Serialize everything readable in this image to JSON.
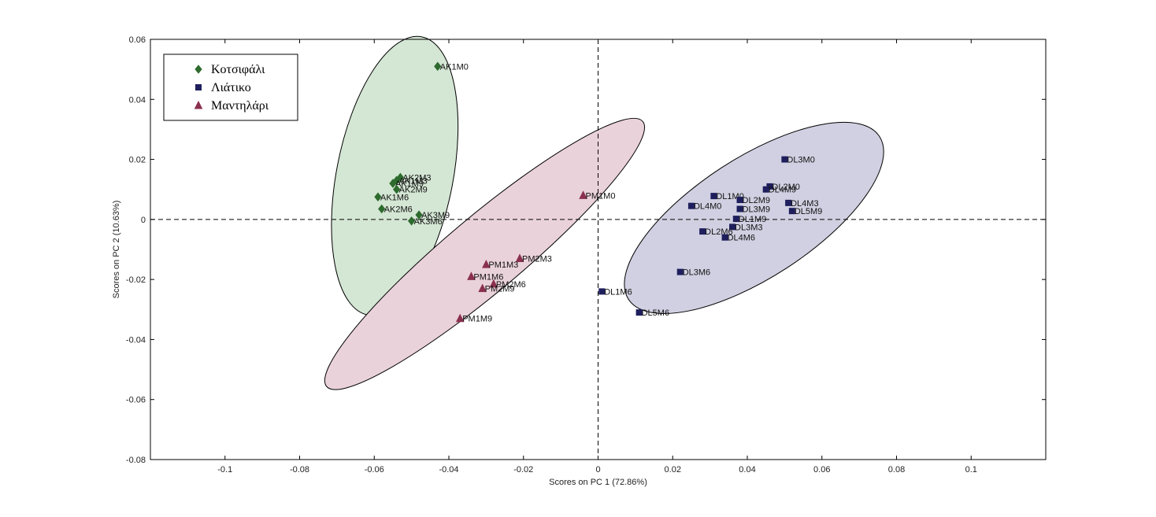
{
  "chart_data": {
    "type": "scatter",
    "xlabel": "Scores on PC 1 (72.86%)",
    "ylabel": "Scores on PC 2 (10.63%)",
    "xlim": [
      -0.12,
      0.12
    ],
    "ylim": [
      -0.08,
      0.06
    ],
    "x_ticks": [
      -0.1,
      -0.08,
      -0.06,
      -0.04,
      -0.02,
      0,
      0.02,
      0.04,
      0.06,
      0.08,
      0.1
    ],
    "x_tick_labels": [
      "-0.1",
      "-0.08",
      "-0.06",
      "-0.04",
      "-0.02",
      "0",
      "0.02",
      "0.04",
      "0.06",
      "0.08",
      "0.1"
    ],
    "y_ticks": [
      -0.08,
      -0.06,
      -0.04,
      -0.02,
      0,
      0.02,
      0.04,
      0.06
    ],
    "y_tick_labels": [
      "-0.08",
      "-0.06",
      "-0.04",
      "-0.02",
      "0",
      "0.02",
      "0.04",
      "0.06"
    ],
    "grid": false,
    "legend_position": "top-left",
    "reference_lines": {
      "x": 0,
      "y": 0,
      "style": "dashed"
    },
    "series": [
      {
        "name": "Κοτσιφάλι",
        "marker": "diamond",
        "color": "#2e6b2e",
        "ellipse_fill": "#d4e6d4",
        "points": [
          {
            "label": "AK1M0",
            "x": -0.043,
            "y": 0.051
          },
          {
            "label": "AK2M3",
            "x": -0.053,
            "y": 0.014
          },
          {
            "label": "AK1M3",
            "x": -0.054,
            "y": 0.013
          },
          {
            "label": "AK1M9",
            "x": -0.055,
            "y": 0.012
          },
          {
            "label": "AK2M9",
            "x": -0.054,
            "y": 0.01
          },
          {
            "label": "AK1M6",
            "x": -0.059,
            "y": 0.0075
          },
          {
            "label": "AK2M6",
            "x": -0.058,
            "y": 0.0035
          },
          {
            "label": "AK3M9",
            "x": -0.048,
            "y": 0.0015
          },
          {
            "label": "AK3M6",
            "x": -0.05,
            "y": -0.0005
          }
        ]
      },
      {
        "name": "Λιάτικο",
        "marker": "square",
        "color": "#1f1f5e",
        "ellipse_fill": "#d0d0e2",
        "points": [
          {
            "label": "DL3M0",
            "x": 0.05,
            "y": 0.02
          },
          {
            "label": "DL2M0",
            "x": 0.046,
            "y": 0.011
          },
          {
            "label": "DL4M9",
            "x": 0.045,
            "y": 0.01
          },
          {
            "label": "DL1M0",
            "x": 0.031,
            "y": 0.0078
          },
          {
            "label": "DL2M9",
            "x": 0.038,
            "y": 0.0065
          },
          {
            "label": "DL4M0",
            "x": 0.025,
            "y": 0.0045
          },
          {
            "label": "DL3M9",
            "x": 0.038,
            "y": 0.0035
          },
          {
            "label": "DL4M3",
            "x": 0.051,
            "y": 0.0055
          },
          {
            "label": "DL5M9",
            "x": 0.052,
            "y": 0.0028
          },
          {
            "label": "DL1M9",
            "x": 0.037,
            "y": 0.0002
          },
          {
            "label": "DL3M3",
            "x": 0.036,
            "y": -0.0025
          },
          {
            "label": "DL2M6",
            "x": 0.028,
            "y": -0.004
          },
          {
            "label": "DL4M6",
            "x": 0.034,
            "y": -0.006
          },
          {
            "label": "DL3M6",
            "x": 0.022,
            "y": -0.0175
          },
          {
            "label": "DL1M6",
            "x": 0.001,
            "y": -0.024
          },
          {
            "label": "DL5M6",
            "x": 0.011,
            "y": -0.031
          }
        ]
      },
      {
        "name": "Μαντηλάρι",
        "marker": "triangle",
        "color": "#8b3050",
        "ellipse_fill": "#ead2da",
        "points": [
          {
            "label": "PM1M0",
            "x": -0.004,
            "y": 0.008
          },
          {
            "label": "PM2M3",
            "x": -0.021,
            "y": -0.013
          },
          {
            "label": "PM1M3",
            "x": -0.03,
            "y": -0.015
          },
          {
            "label": "PM1M6",
            "x": -0.034,
            "y": -0.019
          },
          {
            "label": "PM2M6",
            "x": -0.028,
            "y": -0.0215
          },
          {
            "label": "PM2M9",
            "x": -0.031,
            "y": -0.023
          },
          {
            "label": "PM1M9",
            "x": -0.037,
            "y": -0.033
          }
        ]
      }
    ]
  }
}
